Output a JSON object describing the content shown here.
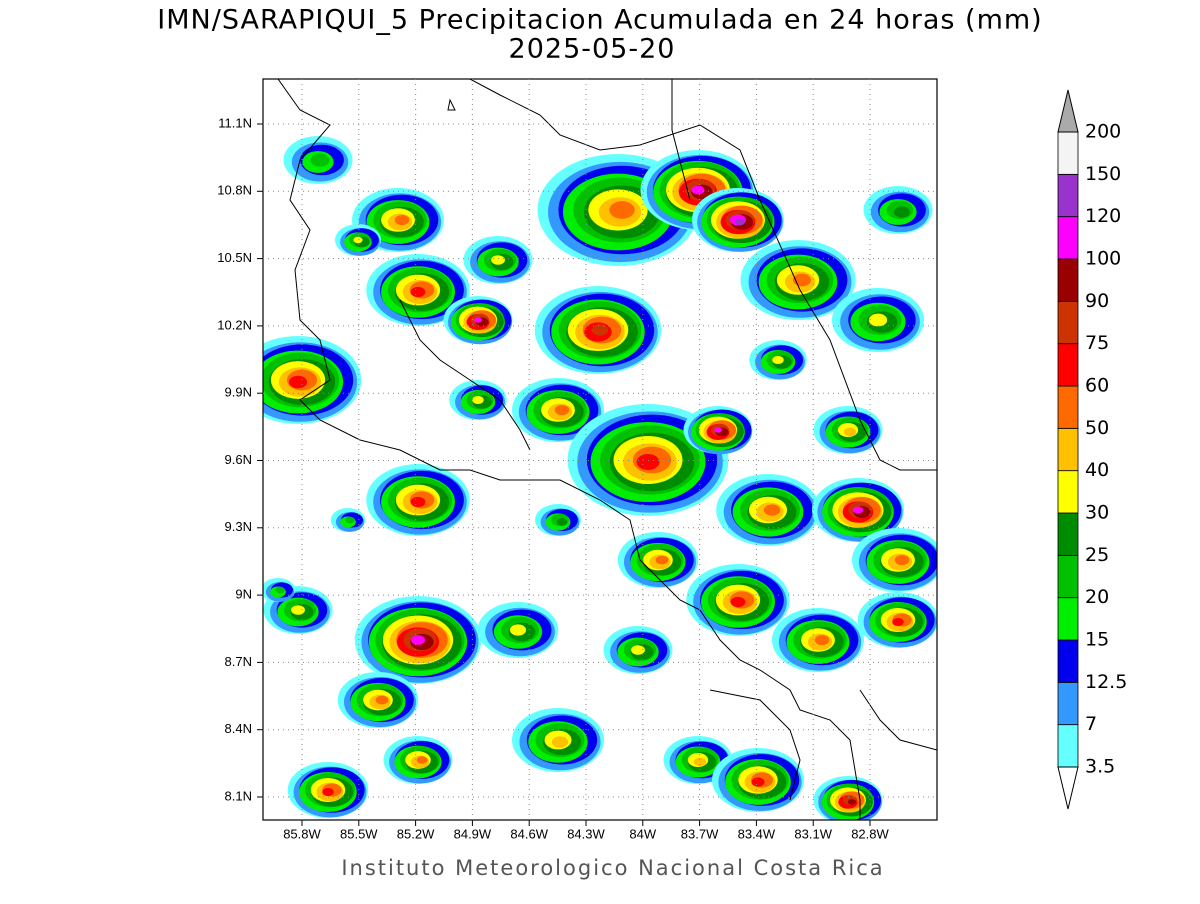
{
  "header": {
    "title": "IMN/SARAPIQUI_5 Precipitacion Acumulada en 24 horas (mm)",
    "date": "2025-05-20"
  },
  "map": {
    "lon_labels": [
      "85.8W",
      "85.5W",
      "85.2W",
      "84.9W",
      "84.6W",
      "84.3W",
      "84W",
      "83.7W",
      "83.4W",
      "83.1W",
      "82.8W"
    ],
    "lat_labels": [
      "11.1N",
      "10.8N",
      "10.5N",
      "10.2N",
      "9.9N",
      "9.6N",
      "9.3N",
      "9N",
      "8.7N",
      "8.4N",
      "8.1N"
    ]
  },
  "colorbar": {
    "levels": [
      3.5,
      7,
      12.5,
      15,
      20,
      25,
      30,
      40,
      50,
      60,
      75,
      90,
      100,
      120,
      150,
      200
    ],
    "colors": [
      "#66ffff",
      "#3399ff",
      "#0000ee",
      "#00ee00",
      "#00c000",
      "#008c00",
      "#ffff00",
      "#ffc000",
      "#ff6a00",
      "#ff0000",
      "#cc3300",
      "#990000",
      "#ff00ff",
      "#9933cc",
      "#f4f4f4"
    ],
    "over_color": "#aaaaaa",
    "under_color": "#ffffff"
  },
  "footer": "Instituto Meteorologico Nacional Costa Rica"
}
